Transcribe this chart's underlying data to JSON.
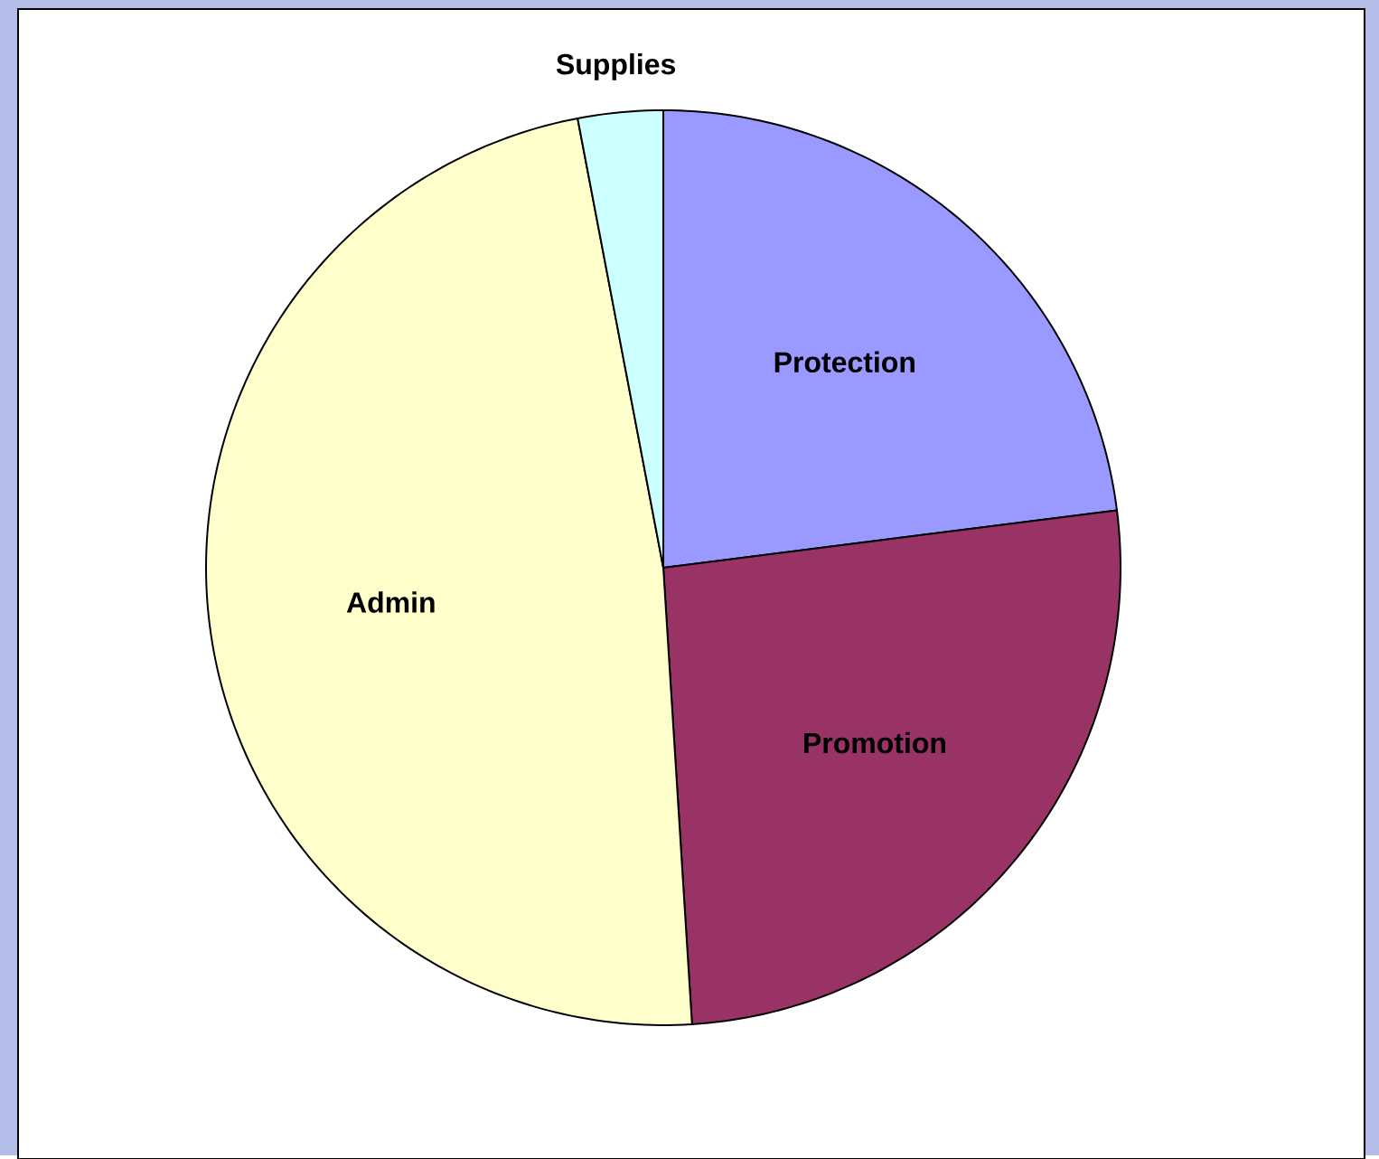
{
  "chart_data": {
    "type": "pie",
    "categories": [
      "Protection",
      "Promotion",
      "Admin",
      "Supplies"
    ],
    "values": [
      23,
      26,
      48,
      3
    ],
    "colors": [
      "#9999ff",
      "#993366",
      "#ffffcc",
      "#ccffff"
    ]
  }
}
